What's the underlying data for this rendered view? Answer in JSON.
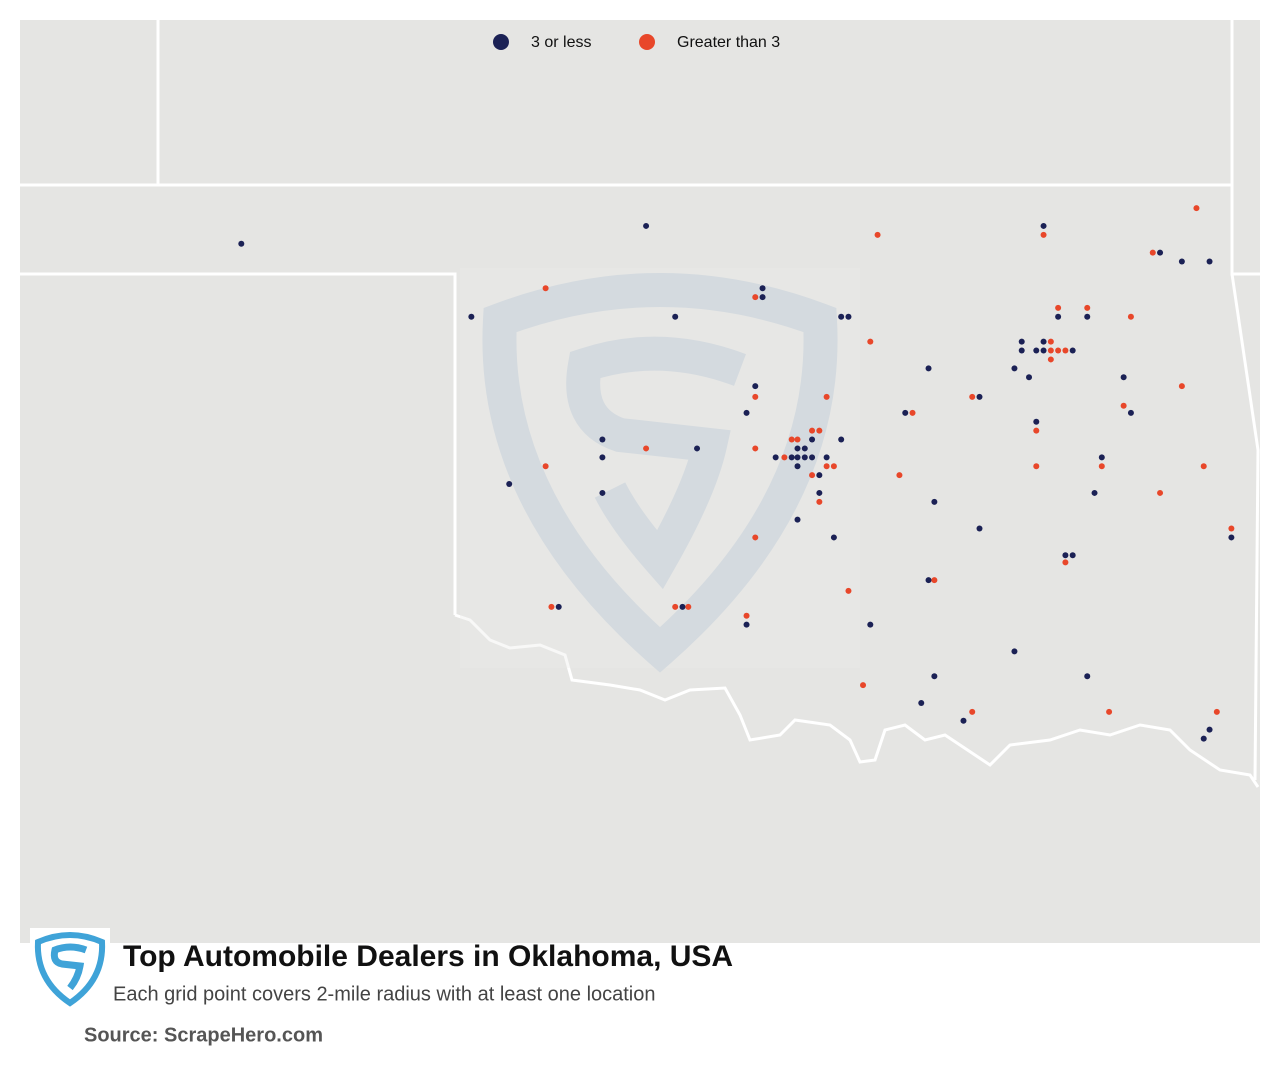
{
  "legend": [
    {
      "label": "3 or less",
      "color": "#1b2155"
    },
    {
      "label": "Greater than 3",
      "color": "#e8472a"
    }
  ],
  "title": "Top Automobile Dealers in Oklahoma, USA",
  "subtitle": "Each grid point covers 2-mile radius with at least one location",
  "source": "Source: ScrapeHero.com",
  "groups": [
    {
      "points": [
        [
          -101.48,
          36.67
        ],
        [
          -98.7,
          36.77
        ],
        [
          -95.97,
          36.77
        ],
        [
          -95.17,
          36.62
        ],
        [
          -95.02,
          36.57
        ],
        [
          -94.83,
          36.57
        ],
        [
          -99.9,
          36.26
        ],
        [
          -98.5,
          36.26
        ],
        [
          -97.9,
          36.42
        ],
        [
          -97.9,
          36.37
        ],
        [
          -97.36,
          36.26
        ],
        [
          -97.31,
          36.26
        ],
        [
          -95.87,
          36.26
        ],
        [
          -95.67,
          36.26
        ],
        [
          -96.12,
          36.12
        ],
        [
          -95.97,
          36.12
        ],
        [
          -96.12,
          36.07
        ],
        [
          -96.02,
          36.07
        ],
        [
          -95.97,
          36.07
        ],
        [
          -95.77,
          36.07
        ],
        [
          -96.76,
          35.97
        ],
        [
          -96.17,
          35.97
        ],
        [
          -96.07,
          35.92
        ],
        [
          -95.42,
          35.92
        ],
        [
          -97.95,
          35.87
        ],
        [
          -96.41,
          35.81
        ],
        [
          -95.37,
          35.72
        ],
        [
          -98.01,
          35.72
        ],
        [
          -96.92,
          35.72
        ],
        [
          -96.02,
          35.67
        ],
        [
          -99.0,
          35.57
        ],
        [
          -98.35,
          35.52
        ],
        [
          -97.56,
          35.57
        ],
        [
          -97.36,
          35.57
        ],
        [
          -97.66,
          35.52
        ],
        [
          -97.61,
          35.52
        ],
        [
          -99.0,
          35.47
        ],
        [
          -97.81,
          35.47
        ],
        [
          -97.7,
          35.47
        ],
        [
          -97.66,
          35.47
        ],
        [
          -97.61,
          35.47
        ],
        [
          -97.56,
          35.47
        ],
        [
          -97.46,
          35.47
        ],
        [
          -95.57,
          35.47
        ],
        [
          -97.66,
          35.42
        ],
        [
          -97.51,
          35.37
        ],
        [
          -99.64,
          35.32
        ],
        [
          -99.0,
          35.27
        ],
        [
          -97.51,
          35.27
        ],
        [
          -95.62,
          35.27
        ],
        [
          -96.72,
          35.22
        ],
        [
          -97.66,
          35.12
        ],
        [
          -96.41,
          35.07
        ],
        [
          -94.68,
          35.02
        ],
        [
          -97.41,
          35.02
        ],
        [
          -95.82,
          34.92
        ],
        [
          -95.77,
          34.92
        ],
        [
          -96.76,
          34.78
        ],
        [
          -99.3,
          34.63
        ],
        [
          -98.45,
          34.63
        ],
        [
          -98.01,
          34.53
        ],
        [
          -97.16,
          34.53
        ],
        [
          -96.17,
          34.38
        ],
        [
          -96.72,
          34.24
        ],
        [
          -95.67,
          34.24
        ],
        [
          -96.81,
          34.09
        ],
        [
          -96.52,
          33.99
        ],
        [
          -94.83,
          33.94
        ],
        [
          -94.87,
          33.89
        ]
      ]
    },
    {
      "points": [
        [
          -97.11,
          36.72
        ],
        [
          -95.97,
          36.72
        ],
        [
          -94.92,
          36.87
        ],
        [
          -95.22,
          36.62
        ],
        [
          -99.39,
          36.42
        ],
        [
          -97.95,
          36.37
        ],
        [
          -97.16,
          36.12
        ],
        [
          -95.87,
          36.31
        ],
        [
          -95.67,
          36.31
        ],
        [
          -95.37,
          36.26
        ],
        [
          -95.92,
          36.12
        ],
        [
          -95.92,
          36.07
        ],
        [
          -95.87,
          36.07
        ],
        [
          -95.82,
          36.07
        ],
        [
          -95.92,
          36.02
        ],
        [
          -95.02,
          35.87
        ],
        [
          -97.95,
          35.81
        ],
        [
          -97.46,
          35.81
        ],
        [
          -96.46,
          35.81
        ],
        [
          -95.42,
          35.76
        ],
        [
          -96.87,
          35.72
        ],
        [
          -96.02,
          35.62
        ],
        [
          -97.56,
          35.62
        ],
        [
          -97.51,
          35.62
        ],
        [
          -98.7,
          35.52
        ],
        [
          -97.95,
          35.52
        ],
        [
          -97.7,
          35.57
        ],
        [
          -97.66,
          35.57
        ],
        [
          -97.75,
          35.47
        ],
        [
          -99.39,
          35.42
        ],
        [
          -97.46,
          35.42
        ],
        [
          -97.41,
          35.42
        ],
        [
          -96.02,
          35.42
        ],
        [
          -95.57,
          35.42
        ],
        [
          -94.87,
          35.42
        ],
        [
          -97.56,
          35.37
        ],
        [
          -96.96,
          35.37
        ],
        [
          -95.17,
          35.27
        ],
        [
          -97.51,
          35.22
        ],
        [
          -94.68,
          35.07
        ],
        [
          -97.95,
          35.02
        ],
        [
          -95.82,
          34.88
        ],
        [
          -96.72,
          34.78
        ],
        [
          -97.31,
          34.72
        ],
        [
          -99.35,
          34.63
        ],
        [
          -98.5,
          34.63
        ],
        [
          -98.41,
          34.63
        ],
        [
          -98.01,
          34.58
        ],
        [
          -97.21,
          34.19
        ],
        [
          -96.46,
          34.04
        ],
        [
          -95.52,
          34.04
        ],
        [
          -94.78,
          34.04
        ]
      ]
    }
  ]
}
